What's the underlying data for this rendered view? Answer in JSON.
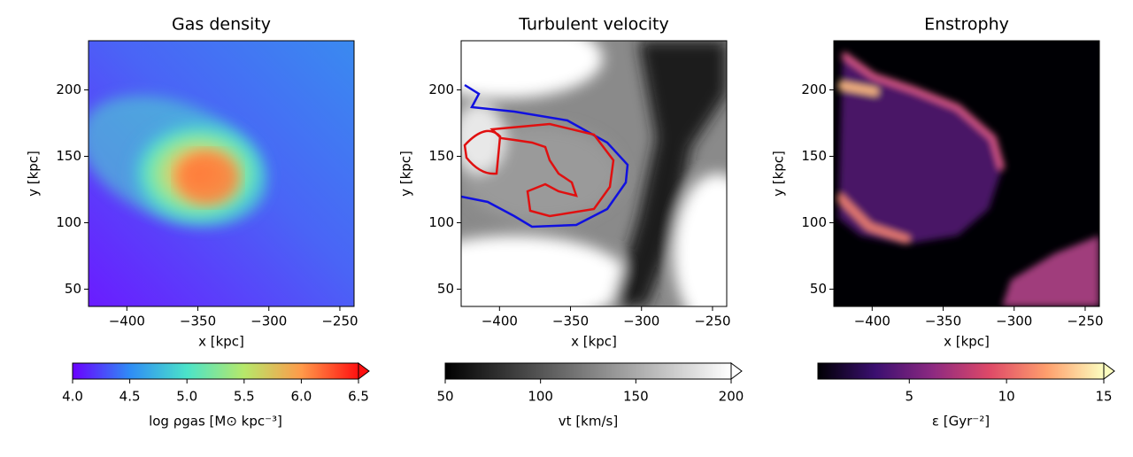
{
  "chart_data": [
    {
      "type": "heatmap",
      "title": "Gas density",
      "xlabel": "x [kpc]",
      "ylabel": "y [kpc]",
      "xlim": [
        -427,
        -240
      ],
      "ylim": [
        37,
        237
      ],
      "xticks": [
        {
          "value": -400,
          "label": "−400"
        },
        {
          "value": -350,
          "label": "−350"
        },
        {
          "value": -300,
          "label": "−300"
        },
        {
          "value": -250,
          "label": "−250"
        }
      ],
      "yticks": [
        50,
        100,
        150,
        200
      ],
      "colorbar": {
        "label": "log ρgas [M⊙ kpc⁻³]",
        "lim": [
          4,
          6.5
        ],
        "extend": "max",
        "ticks": [
          {
            "value": 4,
            "label": "4.0"
          },
          4.5,
          {
            "value": 5,
            "label": "5.0"
          },
          5.5,
          {
            "value": 6,
            "label": "6.0"
          },
          6.5
        ],
        "colormap": [
          "#6a00ff",
          "#2f8cf5",
          "#4be3c9",
          "#b6e86a",
          "#ff9a4a",
          "#ff1010"
        ]
      }
    },
    {
      "type": "heatmap",
      "title": "Turbulent velocity",
      "xlabel": "x [kpc]",
      "ylabel": "y [kpc]",
      "xlim": [
        -427,
        -240
      ],
      "ylim": [
        37,
        237
      ],
      "xticks": [
        {
          "value": -400,
          "label": "−400"
        },
        {
          "value": -350,
          "label": "−350"
        },
        {
          "value": -300,
          "label": "−300"
        },
        {
          "value": -250,
          "label": "−250"
        }
      ],
      "yticks": [
        50,
        100,
        150,
        200
      ],
      "colorbar": {
        "label": "vt [km/s]",
        "lim": [
          50,
          200
        ],
        "extend": "max",
        "ticks": [
          50,
          100,
          150,
          200
        ],
        "colormap": [
          "#000000",
          "#ffffff"
        ]
      }
    },
    {
      "type": "heatmap",
      "title": "Enstrophy",
      "xlabel": "x [kpc]",
      "ylabel": "y [kpc]",
      "xlim": [
        -427,
        -240
      ],
      "ylim": [
        37,
        237
      ],
      "xticks": [
        {
          "value": -400,
          "label": "−400"
        },
        {
          "value": -350,
          "label": "−350"
        },
        {
          "value": -300,
          "label": "−300"
        },
        {
          "value": -250,
          "label": "−250"
        }
      ],
      "yticks": [
        50,
        100,
        150,
        200
      ],
      "colorbar": {
        "label": "ε [Gyr⁻²]",
        "lim": [
          0.3,
          15
        ],
        "extend": "max",
        "ticks": [
          5,
          10,
          15
        ],
        "colormap": [
          "#000004",
          "#3b0f70",
          "#8c2981",
          "#de4968",
          "#fe9f6d",
          "#fcfdbf"
        ]
      }
    }
  ]
}
